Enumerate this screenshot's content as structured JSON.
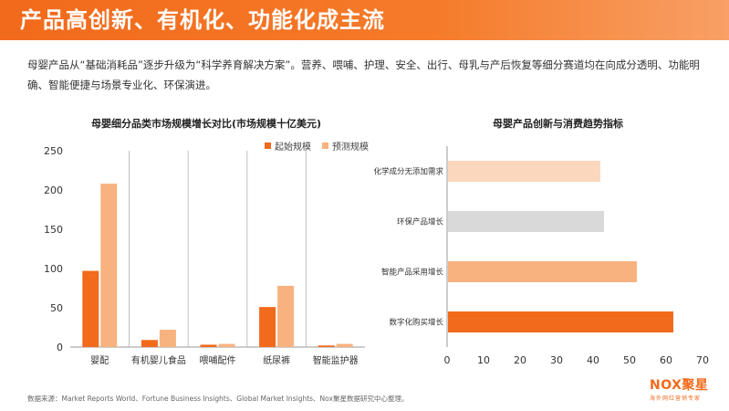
{
  "page": {
    "title": "产品高创新、有机化、功能化成主流",
    "intro": "母婴产品从“基础消耗品”逐步升级为“科学养育解决方案”。营养、喂哺、护理、安全、出行、母乳与产后恢复等细分赛道均在向成分透明、功能明确、智能便捷与场景专业化、环保演进。",
    "source": "数据来源：Market Reports World、Fortune Business Insights、Global Market Insights、Nox聚星数据研究中心整理。",
    "logo_text": "NOX聚星",
    "logo_sub": "海外网红营销专家"
  },
  "colors": {
    "banner": "#f26a1b",
    "dark_orange": "#f26a1b",
    "light_orange": "#f8b27f",
    "peach": "#fbd7bd",
    "gray": "#d9d9d9"
  },
  "chart_data": [
    {
      "type": "bar",
      "title": "母婴细分品类市场规模增长对比(市场规模十亿美元)",
      "categories": [
        "婴配",
        "有机婴儿食品",
        "喂哺配件",
        "纸尿裤",
        "智能监护器"
      ],
      "series": [
        {
          "name": "起始规模",
          "color": "#f26a1b",
          "values": [
            97,
            9,
            3,
            51,
            2
          ]
        },
        {
          "name": "预测规模",
          "color": "#f8b27f",
          "values": [
            208,
            22,
            4,
            78,
            4
          ]
        }
      ],
      "ylim": [
        0,
        250
      ],
      "yticks": [
        0,
        50,
        100,
        150,
        200,
        250
      ],
      "legend": "top-right",
      "grid": false
    },
    {
      "type": "bar",
      "orientation": "horizontal",
      "title": "母婴产品创新与消费趋势指标",
      "categories": [
        "化学成分无添加需求",
        "环保产品增长",
        "智能产品采用增长",
        "数字化购买增长"
      ],
      "values": [
        42,
        43,
        52,
        62
      ],
      "bar_colors": [
        "#fbd7bd",
        "#d9d9d9",
        "#f8b27f",
        "#f26a1b"
      ],
      "xlim": [
        0,
        70
      ],
      "xticks": [
        0,
        10,
        20,
        30,
        40,
        50,
        60,
        70
      ],
      "grid": false
    }
  ]
}
